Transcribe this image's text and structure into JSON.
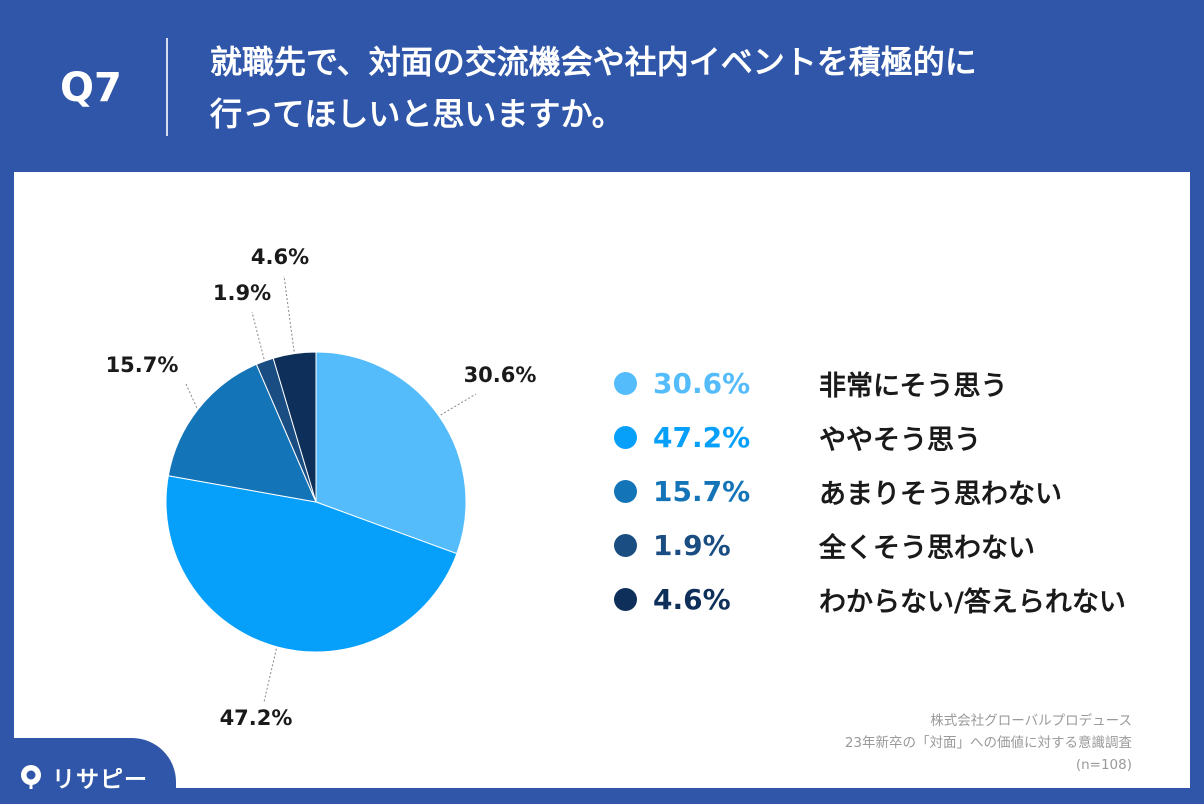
{
  "header": {
    "question_number": "Q7",
    "title_line1": "就職先で、対面の交流機会や社内イベントを積極的に",
    "title_line2": "行ってほしいと思いますか。"
  },
  "chart_data": {
    "type": "pie",
    "start": "top",
    "direction": "clockwise",
    "slices": [
      {
        "label": "非常にそう思う",
        "value": 30.6,
        "pct_label": "30.6%",
        "color": "#55bcfb"
      },
      {
        "label": "ややそう思う",
        "value": 47.2,
        "pct_label": "47.2%",
        "color": "#06a0fb"
      },
      {
        "label": "あまりそう思わない",
        "value": 15.7,
        "pct_label": "15.7%",
        "color": "#1474b8"
      },
      {
        "label": "全くそう思わない",
        "value": 1.9,
        "pct_label": "1.9%",
        "color": "#1a4d82"
      },
      {
        "label": "わからない/答えられない",
        "value": 4.6,
        "pct_label": "4.6%",
        "color": "#0d2f5a"
      }
    ],
    "legend_position": "right"
  },
  "source": {
    "line1": "株式会社グローバルプロデュース",
    "line2": "23年新卒の「対面」への価値に対する意識調査",
    "line3": "(n=108)"
  },
  "logo": {
    "text": "リサピー",
    "icon": "pin-logo-icon"
  },
  "colors": {
    "background": "#2f56a8",
    "panel": "#ffffff"
  }
}
